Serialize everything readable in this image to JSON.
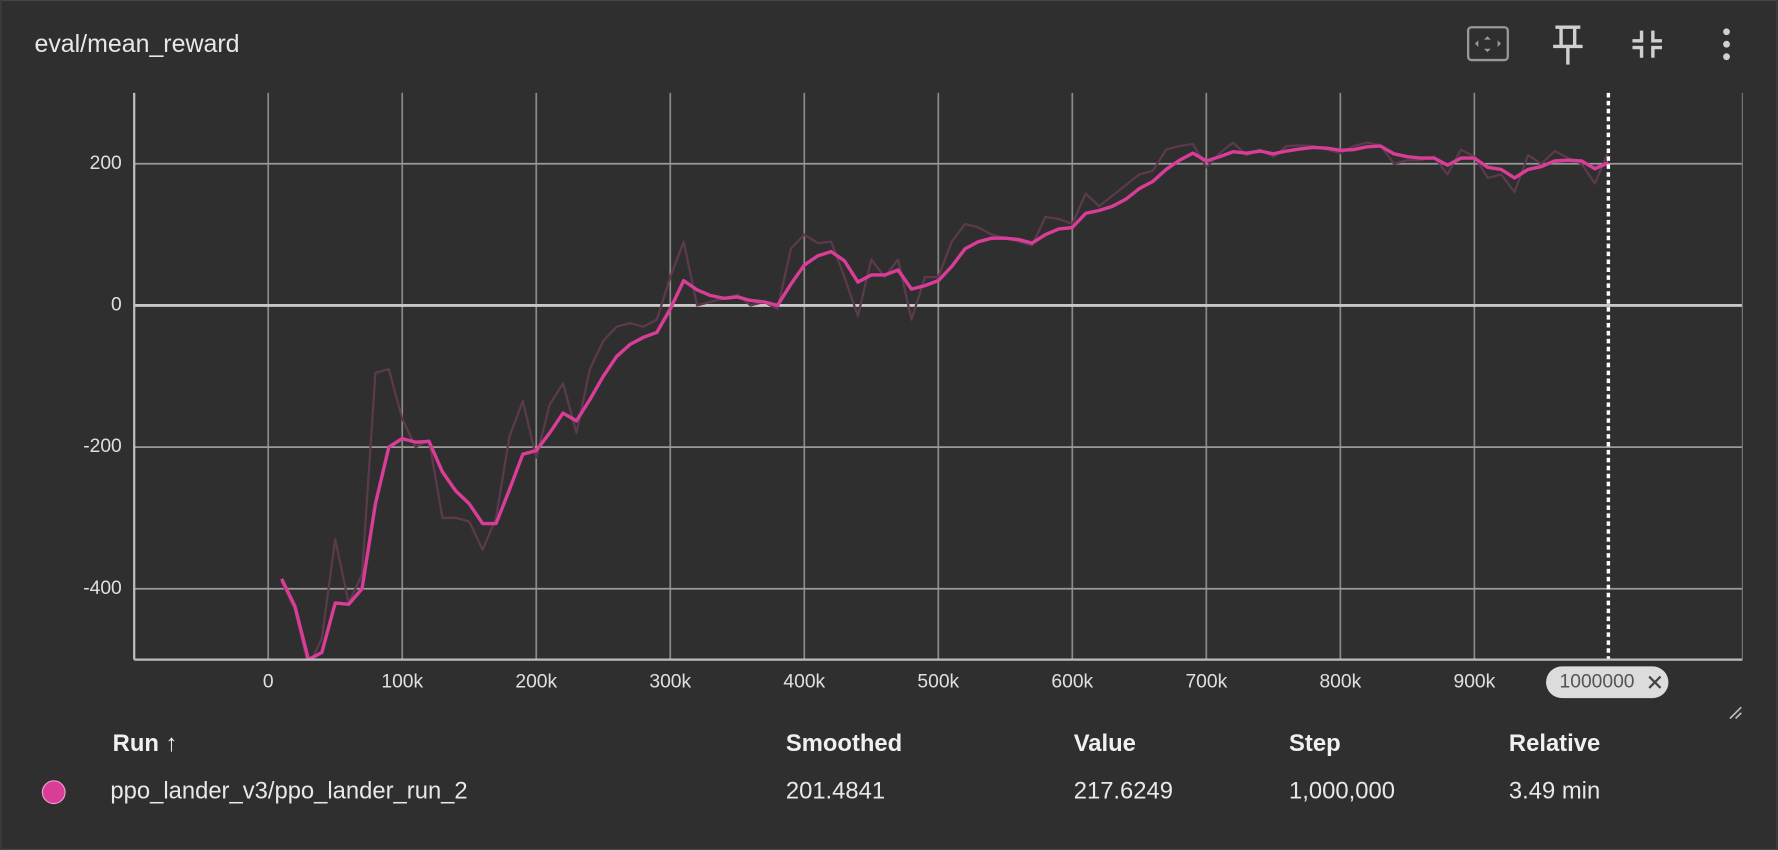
{
  "header": {
    "title": "eval/mean_reward"
  },
  "chart_data": {
    "type": "line",
    "x": [
      10000,
      20000,
      30000,
      40000,
      50000,
      60000,
      70000,
      80000,
      90000,
      100000,
      110000,
      120000,
      130000,
      140000,
      150000,
      160000,
      170000,
      180000,
      190000,
      200000,
      210000,
      220000,
      230000,
      240000,
      250000,
      260000,
      270000,
      280000,
      290000,
      300000,
      310000,
      320000,
      330000,
      340000,
      350000,
      360000,
      370000,
      380000,
      390000,
      400000,
      410000,
      420000,
      430000,
      440000,
      450000,
      460000,
      470000,
      480000,
      490000,
      500000,
      510000,
      520000,
      530000,
      540000,
      550000,
      560000,
      570000,
      580000,
      590000,
      600000,
      610000,
      620000,
      630000,
      640000,
      650000,
      660000,
      670000,
      680000,
      690000,
      700000,
      710000,
      720000,
      730000,
      740000,
      750000,
      760000,
      770000,
      780000,
      790000,
      800000,
      810000,
      820000,
      830000,
      840000,
      850000,
      860000,
      870000,
      880000,
      890000,
      900000,
      910000,
      920000,
      930000,
      940000,
      950000,
      960000,
      970000,
      980000,
      990000,
      1000000
    ],
    "series": [
      {
        "color": "#5b3a4d",
        "values": [
          -390,
          -430,
          -510,
          -470,
          -330,
          -420,
          -380,
          -95,
          -90,
          -160,
          -200,
          -190,
          -300,
          -300,
          -305,
          -345,
          -300,
          -185,
          -135,
          -215,
          -140,
          -110,
          -180,
          -90,
          -50,
          -30,
          -25,
          -30,
          -20,
          40,
          90,
          0,
          5,
          10,
          15,
          0,
          5,
          -5,
          80,
          100,
          88,
          90,
          40,
          -15,
          65,
          40,
          65,
          -20,
          40,
          40,
          90,
          115,
          110,
          100,
          95,
          90,
          85,
          125,
          122,
          115,
          158,
          140,
          155,
          170,
          185,
          190,
          220,
          225,
          228,
          195,
          215,
          230,
          212,
          220,
          210,
          225,
          226,
          225,
          220,
          215,
          225,
          230,
          226,
          200,
          205,
          205,
          210,
          185,
          220,
          210,
          180,
          185,
          160,
          212,
          200,
          218,
          208,
          200,
          172,
          217.6249
        ]
      },
      {
        "color": "#d93d97",
        "values": [
          -386,
          -425,
          -500,
          -490,
          -420,
          -422,
          -400,
          -280,
          -200,
          -188,
          -193,
          -192,
          -235,
          -262,
          -280,
          -308,
          -308,
          -260,
          -210,
          -205,
          -180,
          -152,
          -163,
          -133,
          -100,
          -72,
          -55,
          -45,
          -38,
          -5,
          35,
          22,
          14,
          10,
          12,
          7,
          5,
          0,
          30,
          57,
          70,
          76,
          63,
          33,
          43,
          43,
          50,
          23,
          28,
          35,
          55,
          80,
          90,
          95,
          95,
          93,
          88,
          100,
          108,
          110,
          130,
          134,
          140,
          150,
          165,
          175,
          192,
          205,
          215,
          204,
          210,
          217,
          215,
          218,
          214,
          218,
          221,
          223,
          222,
          219,
          220,
          224,
          225,
          214,
          210,
          208,
          208,
          198,
          208,
          208,
          195,
          192,
          180,
          192,
          196,
          204,
          205,
          204,
          193,
          201.4841
        ]
      }
    ],
    "xlim": [
      -100000,
      1100000
    ],
    "xticks": [
      0,
      {
        "value": 100000,
        "label": "100k"
      },
      {
        "value": 200000,
        "label": "200k"
      },
      {
        "value": 300000,
        "label": "300k"
      },
      {
        "value": 400000,
        "label": "400k"
      },
      {
        "value": 500000,
        "label": "500k"
      },
      {
        "value": 600000,
        "label": "600k"
      },
      {
        "value": 700000,
        "label": "700k"
      },
      {
        "value": 800000,
        "label": "800k"
      },
      {
        "value": 900000,
        "label": "900k"
      }
    ],
    "ylim": [
      -500,
      300
    ],
    "yticks": [
      -400,
      -200,
      0,
      200
    ],
    "grid": true,
    "step_marker": 1000000
  },
  "table": {
    "headers": [
      "Run ↑",
      "Smoothed",
      "Value",
      "Step",
      "Relative"
    ],
    "rows": [
      [
        "ppo_lander_v3/ppo_lander_run_2",
        "201.4841",
        "217.6249",
        "1,000,000",
        "3.49 min"
      ]
    ]
  }
}
